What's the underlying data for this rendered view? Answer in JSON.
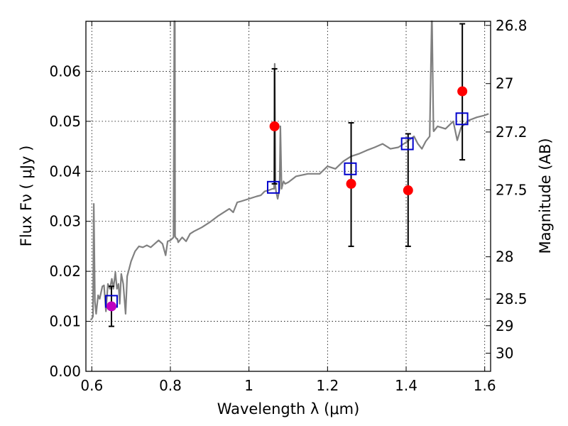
{
  "chart_data": {
    "type": "scatter",
    "xlabel": "Wavelength  λ (μm)",
    "ylabel": "Flux  Fν  ( μJy )",
    "y2label": "Magnitude (AB)",
    "xlim": [
      0.585,
      1.615
    ],
    "ylim": [
      0.0,
      0.07
    ],
    "x_ticks": [
      0.6,
      0.8,
      1.0,
      1.2,
      1.4,
      1.6
    ],
    "x_tick_labels": [
      "0.6",
      "0.8",
      "1",
      "1.2",
      "1.4",
      "1.6"
    ],
    "y_ticks": [
      0.0,
      0.01,
      0.02,
      0.03,
      0.04,
      0.05,
      0.06
    ],
    "y_tick_labels": [
      "0.00",
      "0.01",
      "0.02",
      "0.03",
      "0.04",
      "0.05",
      "0.06"
    ],
    "mag_ticks": [
      26.8,
      27,
      27.2,
      27.5,
      28,
      28.5,
      29,
      30
    ],
    "mag_tick_labels": [
      "26.8",
      "27",
      "27.2",
      "27.5",
      "28",
      "28.5",
      "29",
      "30"
    ],
    "grid": true,
    "colors": {
      "model": "#808080",
      "observed": "#ff0000",
      "observed_upper_limit": "#bf00bf",
      "model_band": "#0000cc",
      "errorbar": "#000000"
    },
    "model_spectrum": {
      "x": [
        0.597,
        0.6,
        0.603,
        0.605,
        0.608,
        0.611,
        0.616,
        0.62,
        0.627,
        0.631,
        0.636,
        0.641,
        0.646,
        0.651,
        0.655,
        0.66,
        0.664,
        0.668,
        0.671,
        0.675,
        0.68,
        0.686,
        0.69,
        0.695,
        0.7,
        0.71,
        0.72,
        0.73,
        0.74,
        0.75,
        0.76,
        0.77,
        0.78,
        0.788,
        0.793,
        0.8,
        0.808,
        0.81,
        0.8115,
        0.812,
        0.8155,
        0.818,
        0.82,
        0.83,
        0.84,
        0.85,
        0.86,
        0.88,
        0.9,
        0.92,
        0.94,
        0.95,
        0.96,
        0.97,
        0.98,
        1.0,
        1.02,
        1.03,
        1.04,
        1.05,
        1.06,
        1.064,
        1.0655,
        1.0675,
        1.069,
        1.073,
        1.078,
        1.08,
        1.083,
        1.086,
        1.088,
        1.092,
        1.1,
        1.12,
        1.15,
        1.18,
        1.2,
        1.22,
        1.24,
        1.26,
        1.28,
        1.3,
        1.32,
        1.34,
        1.36,
        1.38,
        1.4,
        1.42,
        1.43,
        1.44,
        1.45,
        1.46,
        1.465,
        1.466,
        1.4695,
        1.47,
        1.48,
        1.5,
        1.52,
        1.53,
        1.54,
        1.56,
        1.58,
        1.6,
        1.61
      ],
      "y": [
        0.0103,
        0.0105,
        0.011,
        0.0335,
        0.014,
        0.0115,
        0.0152,
        0.0145,
        0.017,
        0.0172,
        0.012,
        0.0175,
        0.0165,
        0.0185,
        0.0165,
        0.0198,
        0.0165,
        0.0175,
        0.0135,
        0.0195,
        0.0175,
        0.0115,
        0.019,
        0.0205,
        0.022,
        0.024,
        0.025,
        0.0248,
        0.0252,
        0.0248,
        0.0255,
        0.0262,
        0.0255,
        0.0232,
        0.026,
        0.0262,
        0.0268,
        0.07,
        0.07,
        0.027,
        0.0265,
        0.0265,
        0.0258,
        0.0268,
        0.026,
        0.0275,
        0.028,
        0.0288,
        0.0298,
        0.031,
        0.032,
        0.0325,
        0.0318,
        0.0338,
        0.034,
        0.0345,
        0.035,
        0.0352,
        0.036,
        0.0362,
        0.0365,
        0.0365,
        0.0615,
        0.037,
        0.036,
        0.0345,
        0.0365,
        0.049,
        0.0365,
        0.0375,
        0.038,
        0.0375,
        0.0378,
        0.039,
        0.0395,
        0.0395,
        0.041,
        0.0405,
        0.042,
        0.043,
        0.0435,
        0.0442,
        0.0448,
        0.0455,
        0.0445,
        0.0448,
        0.0458,
        0.047,
        0.0455,
        0.0445,
        0.046,
        0.047,
        0.07,
        0.07,
        0.0485,
        0.048,
        0.049,
        0.0485,
        0.05,
        0.0462,
        0.0488,
        0.0502,
        0.0508,
        0.0512,
        0.0515
      ]
    },
    "observed": [
      {
        "x": 1.065,
        "y": 0.049,
        "err_low": 0.0375,
        "err_high": 0.0605
      },
      {
        "x": 1.26,
        "y": 0.0375,
        "err_low": 0.025,
        "err_high": 0.0497
      },
      {
        "x": 1.405,
        "y": 0.0362,
        "err_low": 0.025,
        "err_high": 0.0475
      },
      {
        "x": 1.543,
        "y": 0.056,
        "err_low": 0.0423,
        "err_high": 0.0695
      }
    ],
    "observed_upper_limit": [
      {
        "x": 0.65,
        "y": 0.013,
        "err_low": 0.009,
        "err_high": 0.017
      }
    ],
    "model_band": [
      {
        "x": 0.65,
        "y": 0.014
      },
      {
        "x": 1.062,
        "y": 0.0368
      },
      {
        "x": 1.258,
        "y": 0.0405
      },
      {
        "x": 1.403,
        "y": 0.0455
      },
      {
        "x": 1.542,
        "y": 0.0505
      }
    ]
  }
}
